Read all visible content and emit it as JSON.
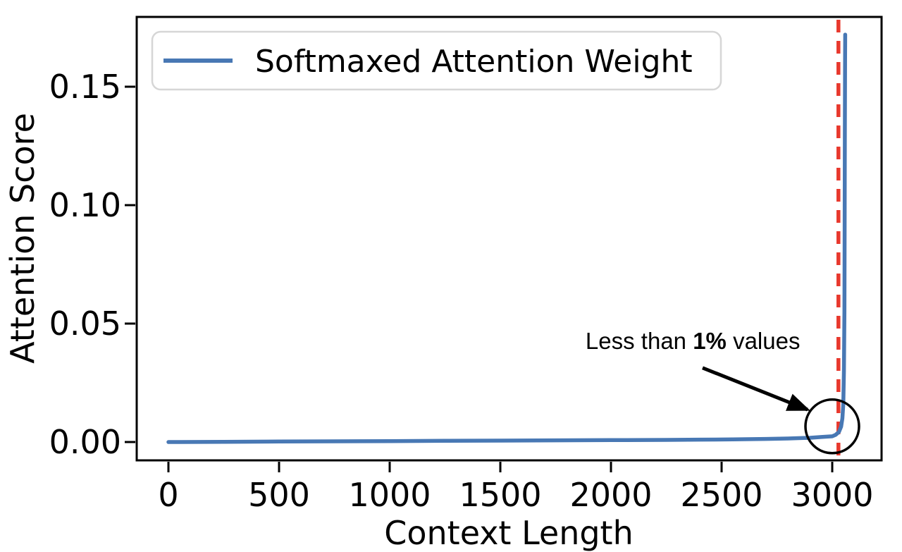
{
  "figure": {
    "background": "#ffffff",
    "frame_color": "#000000",
    "legend_border_color": "#d6d6d6",
    "legend_background": "#ffffff"
  },
  "chart_data": {
    "type": "line",
    "title": "",
    "xlabel": "Context Length",
    "ylabel": "Attention Score",
    "x_ticks": [
      0,
      500,
      1000,
      1500,
      2000,
      2500,
      3000
    ],
    "x_tick_labels": [
      "0",
      "500",
      "1000",
      "1500",
      "2000",
      "2500",
      "3000"
    ],
    "y_ticks": [
      0,
      0.05,
      0.1,
      0.15
    ],
    "y_tick_labels": [
      "0.00",
      "0.05",
      "0.10",
      "0.15"
    ],
    "xlim": [
      -146,
      3226
    ],
    "ylim": [
      -0.008,
      0.18
    ],
    "grid": false,
    "legend": {
      "position": "upper left",
      "entries": [
        {
          "label": "Softmaxed Attention Weight",
          "color": "#4878b4"
        }
      ]
    },
    "series": [
      {
        "name": "Softmaxed Attention Weight",
        "color": "#4878b4",
        "points": [
          [
            0,
            0.0
          ],
          [
            250,
            0.0001
          ],
          [
            500,
            0.0002
          ],
          [
            750,
            0.0003
          ],
          [
            1000,
            0.0004
          ],
          [
            1250,
            0.0005
          ],
          [
            1500,
            0.0006
          ],
          [
            1750,
            0.0007
          ],
          [
            2000,
            0.0008
          ],
          [
            2250,
            0.0009
          ],
          [
            2400,
            0.001
          ],
          [
            2550,
            0.0011
          ],
          [
            2700,
            0.0013
          ],
          [
            2800,
            0.0015
          ],
          [
            2900,
            0.0018
          ],
          [
            2950,
            0.0021
          ],
          [
            3000,
            0.0024
          ],
          [
            3015,
            0.003
          ],
          [
            3030,
            0.0042
          ],
          [
            3040,
            0.0065
          ],
          [
            3046,
            0.01
          ],
          [
            3050,
            0.016
          ],
          [
            3053,
            0.03
          ],
          [
            3055,
            0.055
          ],
          [
            3056,
            0.09
          ],
          [
            3057,
            0.13
          ],
          [
            3058,
            0.16
          ],
          [
            3058.5,
            0.172
          ]
        ]
      }
    ],
    "vline": {
      "x": 3028,
      "color": "#e8382d",
      "style": "dashed"
    },
    "annotation": {
      "text_prefix": "Less than ",
      "text_bold": "1%",
      "text_suffix": " values",
      "color": "#000000",
      "text_xy": [
        2370,
        0.0393
      ],
      "arrow_tail_xy": [
        2414,
        0.0313
      ],
      "arrow_tip_xy": [
        2888,
        0.0137
      ],
      "circle_xy": [
        3000,
        0.0066
      ],
      "circle_radius_px": 38
    }
  }
}
